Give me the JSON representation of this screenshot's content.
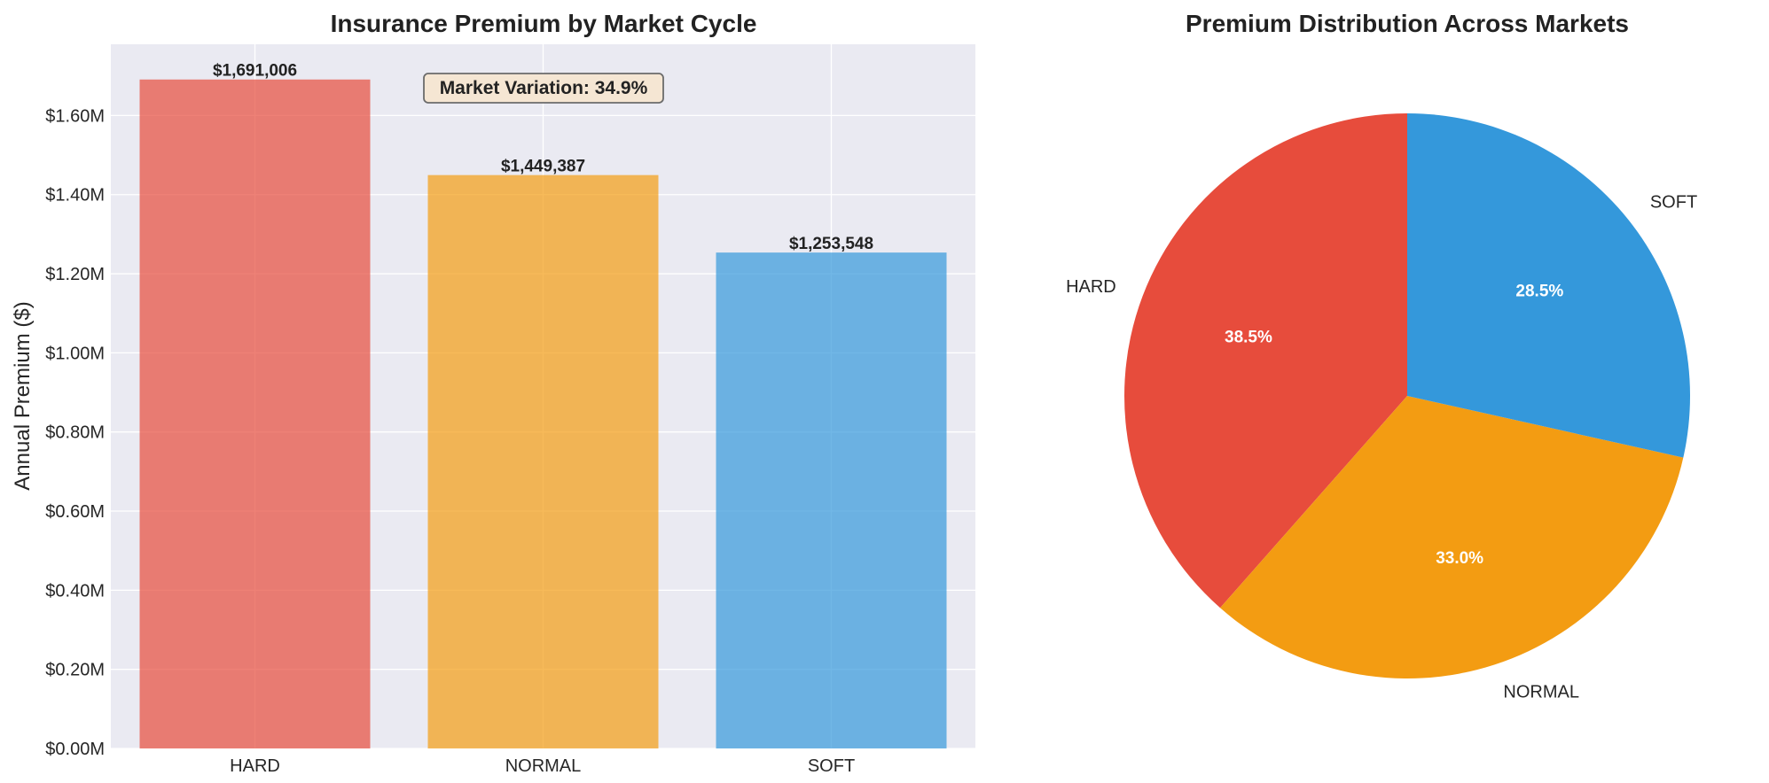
{
  "chart_data": [
    {
      "type": "bar",
      "title": "Insurance Premium by Market Cycle",
      "xlabel": "",
      "ylabel": "Annual Premium ($)",
      "categories": [
        "HARD",
        "NORMAL",
        "SOFT"
      ],
      "values": [
        1691006,
        1449387,
        1253548
      ],
      "value_labels": [
        "$1,691,006",
        "$1,449,387",
        "$1,253,548"
      ],
      "colors": [
        "#e74c3c",
        "#f39c12",
        "#3498db"
      ],
      "ylim": [
        0,
        1780000
      ],
      "yticks": [
        0,
        200000,
        400000,
        600000,
        800000,
        1000000,
        1200000,
        1400000,
        1600000
      ],
      "ytick_labels": [
        "$0.00M",
        "$0.20M",
        "$0.40M",
        "$0.60M",
        "$0.80M",
        "$1.00M",
        "$1.20M",
        "$1.40M",
        "$1.60M"
      ],
      "grid": true,
      "annotation": "Market Variation: 34.9%"
    },
    {
      "type": "pie",
      "title": "Premium Distribution Across Markets",
      "labels": [
        "HARD",
        "NORMAL",
        "SOFT"
      ],
      "values": [
        38.5,
        33.0,
        28.5
      ],
      "pct_labels": [
        "38.5%",
        "33.0%",
        "28.5%"
      ],
      "colors": [
        "#e74c3c",
        "#f39c12",
        "#3498db"
      ],
      "start_angle": 90,
      "direction": "counterclockwise"
    }
  ]
}
